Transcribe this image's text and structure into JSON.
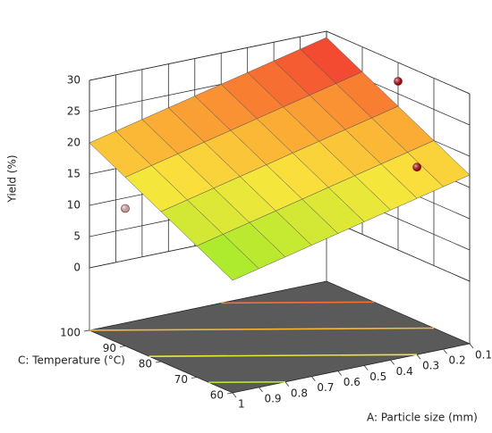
{
  "chart_data": {
    "type": "surface3d",
    "ylabel": "Yield (%)",
    "xlabel": "A: Particle size (mm)",
    "clabel": "C: Temperature (°C)",
    "x": [
      0.1,
      0.2,
      0.3,
      0.4,
      0.5,
      0.6,
      0.7,
      0.8,
      0.9,
      1
    ],
    "c": [
      60,
      70,
      80,
      90,
      100
    ],
    "surface": [
      [
        17,
        16,
        15,
        14,
        13,
        12,
        11,
        10,
        9,
        8
      ],
      [
        20,
        19,
        18,
        17,
        16,
        15,
        14,
        13,
        12,
        11
      ],
      [
        23,
        22,
        21,
        20,
        19,
        18,
        17,
        16,
        15,
        14
      ],
      [
        26,
        25,
        24,
        23,
        22,
        21,
        20,
        19,
        18,
        17
      ],
      [
        29,
        28,
        27,
        26,
        25,
        24,
        23,
        22,
        21,
        20
      ]
    ],
    "points": [
      {
        "a": 0.1,
        "c": 80,
        "y": 27,
        "color": "#c00000"
      },
      {
        "a": 0.3,
        "c": 60,
        "y": 20,
        "color": "#c00000"
      },
      {
        "a": 1,
        "c": 90,
        "y": 12,
        "color": "#f4c0c0"
      }
    ],
    "xlim": [
      0.1,
      1
    ],
    "xticks": [
      0.1,
      0.2,
      0.3,
      0.4,
      0.5,
      0.6,
      0.7,
      0.8,
      0.9,
      1
    ],
    "clim": [
      60,
      100
    ],
    "cticks": [
      60,
      70,
      80,
      90,
      100
    ],
    "ylim": [
      0,
      30
    ],
    "yticks": [
      0,
      5,
      10,
      15,
      20,
      25,
      30
    ],
    "floor_color": "#5a5a5a"
  }
}
